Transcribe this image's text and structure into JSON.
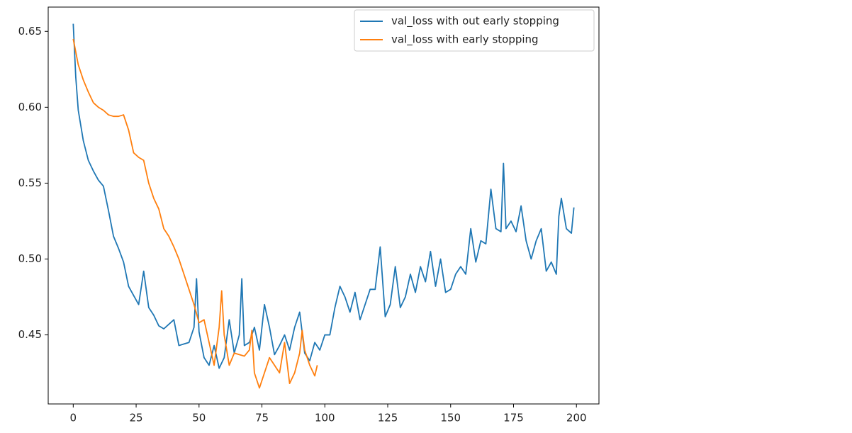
{
  "chart_data": {
    "type": "line",
    "xlim": [
      -9.95,
      208.95
    ],
    "ylim": [
      0.4045,
      0.666
    ],
    "xticks": [
      0,
      25,
      50,
      75,
      100,
      125,
      150,
      175,
      200
    ],
    "yticks": [
      0.45,
      {
        "value": 0.5,
        "label": "0.50"
      },
      0.55,
      {
        "value": 0.6,
        "label": "0.60"
      },
      0.65
    ],
    "legend": "upper right",
    "series": [
      {
        "name": "val_loss with out early stopping",
        "color": "#1f77b4",
        "x": [
          0,
          1,
          2,
          4,
          6,
          8,
          10,
          12,
          14,
          16,
          18,
          20,
          22,
          24,
          26,
          28,
          30,
          32,
          34,
          36,
          38,
          40,
          42,
          44,
          46,
          48,
          49,
          50,
          52,
          54,
          56,
          58,
          60,
          62,
          64,
          66,
          67,
          68,
          70,
          72,
          74,
          76,
          78,
          80,
          82,
          84,
          86,
          88,
          90,
          92,
          94,
          96,
          98,
          100,
          102,
          104,
          106,
          108,
          110,
          112,
          114,
          116,
          118,
          120,
          122,
          124,
          126,
          128,
          130,
          132,
          134,
          136,
          138,
          140,
          142,
          144,
          146,
          148,
          150,
          152,
          154,
          156,
          158,
          160,
          162,
          164,
          166,
          168,
          170,
          171,
          172,
          174,
          176,
          178,
          180,
          182,
          184,
          186,
          188,
          190,
          192,
          193,
          194,
          196,
          198,
          199
        ],
        "values": [
          0.655,
          0.62,
          0.598,
          0.578,
          0.565,
          0.558,
          0.552,
          0.548,
          0.532,
          0.515,
          0.507,
          0.498,
          0.482,
          0.476,
          0.47,
          0.492,
          0.468,
          0.463,
          0.456,
          0.454,
          0.457,
          0.46,
          0.443,
          0.444,
          0.445,
          0.455,
          0.487,
          0.452,
          0.435,
          0.43,
          0.443,
          0.428,
          0.435,
          0.46,
          0.438,
          0.45,
          0.487,
          0.443,
          0.445,
          0.455,
          0.44,
          0.47,
          0.455,
          0.437,
          0.443,
          0.45,
          0.44,
          0.455,
          0.465,
          0.438,
          0.433,
          0.445,
          0.44,
          0.45,
          0.45,
          0.468,
          0.482,
          0.475,
          0.465,
          0.478,
          0.46,
          0.47,
          0.48,
          0.48,
          0.508,
          0.462,
          0.47,
          0.495,
          0.468,
          0.475,
          0.49,
          0.478,
          0.495,
          0.485,
          0.505,
          0.482,
          0.5,
          0.478,
          0.48,
          0.49,
          0.495,
          0.49,
          0.52,
          0.498,
          0.512,
          0.51,
          0.546,
          0.52,
          0.518,
          0.563,
          0.52,
          0.525,
          0.518,
          0.535,
          0.512,
          0.5,
          0.512,
          0.52,
          0.492,
          0.498,
          0.49,
          0.528,
          0.54,
          0.52,
          0.517,
          0.534
        ]
      },
      {
        "name": "val_loss with early stopping",
        "color": "#ff7f0e",
        "x": [
          0,
          2,
          4,
          6,
          8,
          10,
          12,
          14,
          16,
          18,
          20,
          22,
          24,
          26,
          28,
          30,
          32,
          34,
          36,
          38,
          40,
          42,
          44,
          46,
          48,
          50,
          52,
          54,
          56,
          58,
          59,
          60,
          62,
          64,
          66,
          68,
          70,
          71,
          72,
          74,
          76,
          78,
          80,
          82,
          84,
          86,
          88,
          90,
          91,
          92,
          94,
          96,
          97
        ],
        "values": [
          0.645,
          0.628,
          0.618,
          0.61,
          0.603,
          0.6,
          0.598,
          0.595,
          0.594,
          0.594,
          0.595,
          0.585,
          0.57,
          0.567,
          0.565,
          0.55,
          0.54,
          0.533,
          0.52,
          0.515,
          0.508,
          0.5,
          0.49,
          0.48,
          0.47,
          0.458,
          0.46,
          0.445,
          0.43,
          0.455,
          0.479,
          0.45,
          0.43,
          0.438,
          0.437,
          0.436,
          0.44,
          0.453,
          0.425,
          0.415,
          0.425,
          0.435,
          0.43,
          0.425,
          0.445,
          0.418,
          0.425,
          0.438,
          0.453,
          0.44,
          0.43,
          0.423,
          0.43
        ]
      }
    ]
  }
}
